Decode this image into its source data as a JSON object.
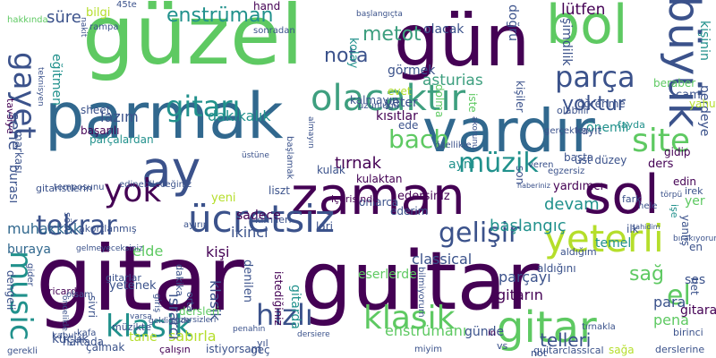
{
  "cloud": {
    "palette": {
      "purple": "#440154",
      "indigo": "#3b528b",
      "teal": "#21918c",
      "green": "#5ec962",
      "lime": "#b5de2b",
      "yellow": "#fde725"
    },
    "words": [
      {
        "text": "güzel",
        "color": "#5ec962"
      },
      {
        "text": "gün",
        "color": "#440154"
      },
      {
        "text": "bol",
        "color": "#5ec962"
      },
      {
        "text": "parmak",
        "color": "#31688e"
      },
      {
        "text": "vardır",
        "color": "#31688e"
      },
      {
        "text": "zaman",
        "color": "#440154"
      },
      {
        "text": "ay",
        "color": "#3b528b"
      },
      {
        "text": "sol",
        "color": "#440154"
      },
      {
        "text": "gitar",
        "color": "#440154"
      },
      {
        "text": "guitar",
        "color": "#440154"
      },
      {
        "text": "olacaktır",
        "color": "#3e9f7f"
      },
      {
        "text": "ücretsiz",
        "color": "#3b528b"
      },
      {
        "text": "yeterli",
        "color": "#b5de2b"
      },
      {
        "text": "klasik",
        "color": "#5ec962"
      },
      {
        "text": "gitar",
        "color": "#5ec962"
      },
      {
        "text": "büyük",
        "color": "#3b528b"
      },
      {
        "text": "gitarı",
        "color": "#21918c"
      },
      {
        "text": "parça",
        "color": "#3b528b"
      },
      {
        "text": "site",
        "color": "#5ec962"
      },
      {
        "text": "tekrar",
        "color": "#3b528b"
      },
      {
        "text": "yok",
        "color": "#440154"
      },
      {
        "text": "müzik",
        "color": "#21918c"
      },
      {
        "text": "gelişir",
        "color": "#3b528b"
      },
      {
        "text": "music",
        "color": "#21918c"
      },
      {
        "text": "klasik",
        "color": "#21918c"
      },
      {
        "text": "hızlı",
        "color": "#3b528b"
      },
      {
        "text": "gayet",
        "color": "#3b528b"
      },
      {
        "text": "bach",
        "color": "#5ec962"
      },
      {
        "text": "enstrüman",
        "color": "#21918c"
      },
      {
        "text": "metot",
        "color": "#3e9f7f"
      },
      {
        "text": "nota",
        "color": "#3b528b"
      },
      {
        "text": "yoktur",
        "color": "#3b528b"
      },
      {
        "text": "sağ",
        "color": "#5ec962"
      },
      {
        "text": "el",
        "color": "#5ec962"
      },
      {
        "text": "devam",
        "color": "#21918c"
      },
      {
        "text": "başlangıç",
        "color": "#21918c"
      },
      {
        "text": "sene",
        "color": "#3b528b"
      },
      {
        "text": "eğitmen",
        "color": "#21918c"
      },
      {
        "text": "dakikalık",
        "color": "#21918c"
      },
      {
        "text": "lazım",
        "color": "#3b528b"
      },
      {
        "text": "tırnak",
        "color": "#440154"
      },
      {
        "text": "sadece",
        "color": "#440154"
      },
      {
        "text": "ikinci",
        "color": "#3b528b"
      },
      {
        "text": "muhakkak",
        "color": "#31688e"
      },
      {
        "text": "buraya",
        "color": "#31688e"
      },
      {
        "text": "kişi",
        "color": "#440154"
      },
      {
        "text": "classical",
        "color": "#3b528b"
      },
      {
        "text": "lütfen",
        "color": "#440154"
      },
      {
        "text": "süre",
        "color": "#3b528b"
      },
      {
        "text": "bilgi",
        "color": "#b5de2b"
      },
      {
        "text": "olacak",
        "color": "#3b528b"
      },
      {
        "text": "görmek",
        "color": "#3b528b"
      },
      {
        "text": "asturias",
        "color": "#3e9f7f"
      },
      {
        "text": "kısıtlar",
        "color": "#440154"
      },
      {
        "text": "temel",
        "color": "#21918c"
      },
      {
        "text": "elde",
        "color": "#5ec962"
      },
      {
        "text": "yeni",
        "color": "#b5de2b"
      },
      {
        "text": "klasik",
        "color": "#3b528b"
      },
      {
        "text": "tane",
        "color": "#b5de2b"
      },
      {
        "text": "sabırla",
        "color": "#b5de2b"
      },
      {
        "text": "enstrümanı",
        "color": "#5ec962"
      },
      {
        "text": "günde",
        "color": "#3b528b"
      },
      {
        "text": "telleri",
        "color": "#3b528b"
      },
      {
        "text": "pena",
        "color": "#5ec962"
      },
      {
        "text": "para",
        "color": "#3b528b"
      },
      {
        "text": "gitara",
        "color": "#440154"
      },
      {
        "text": "gitarın",
        "color": "#440154"
      },
      {
        "text": "parçayı",
        "color": "#3b528b"
      },
      {
        "text": "ısrarcı",
        "color": "#3b528b"
      },
      {
        "text": "gitarda",
        "color": "#21918c"
      },
      {
        "text": "eserlerde",
        "color": "#5ec962"
      },
      {
        "text": "önemli",
        "color": "#21918c"
      },
      {
        "text": "yardımcı",
        "color": "#440154"
      },
      {
        "text": "ayni",
        "color": "#21918c"
      },
      {
        "text": "edersiniz",
        "color": "#440154"
      },
      {
        "text": "ses",
        "color": "#3b528b"
      },
      {
        "text": "kişinin",
        "color": "#21918c"
      },
      {
        "text": "şimdilik",
        "color": "#3b528b"
      },
      {
        "text": "perdeye",
        "color": "#3b528b"
      },
      {
        "text": "burası",
        "color": "#3b528b"
      },
      {
        "text": "küçük",
        "color": "#3b528b"
      },
      {
        "text": "yeter",
        "color": "#3b528b"
      },
      {
        "text": "evet",
        "color": "#b5de2b"
      },
      {
        "text": "kolay",
        "color": "#21918c"
      },
      {
        "text": "yer",
        "color": "#5ec962"
      },
      {
        "text": "sheet",
        "color": "#3b528b"
      },
      {
        "text": "liszt",
        "color": "#3b528b"
      },
      {
        "text": "tavsiye",
        "color": "#440154"
      },
      {
        "text": "parçalardan",
        "color": "#21918c"
      },
      {
        "text": "başarılı",
        "color": "#440154"
      },
      {
        "text": "denilen",
        "color": "#3b528b"
      },
      {
        "text": "istiyorsam",
        "color": "#3b528b"
      },
      {
        "text": "dersleri",
        "color": "#5ec962"
      },
      {
        "text": "dakika",
        "color": "#3b528b"
      },
      {
        "text": "istediğiniz",
        "color": "#440154"
      },
      {
        "text": "kulak",
        "color": "#3b528b"
      },
      {
        "text": "başta",
        "color": "#3b528b"
      },
      {
        "text": "ders",
        "color": "#440154"
      },
      {
        "text": "cam",
        "color": "#3b528b"
      },
      {
        "text": "yahut",
        "color": "#b5de2b"
      },
      {
        "text": "gidip",
        "color": "#440154"
      },
      {
        "text": "kayıt",
        "color": "#3b528b"
      },
      {
        "text": "olabilir",
        "color": "#3b528b"
      },
      {
        "text": "beraber",
        "color": "#5ec962"
      },
      {
        "text": "öğrenme",
        "color": "#3b528b"
      },
      {
        "text": "fayda",
        "color": "#21918c"
      },
      {
        "text": "edin",
        "color": "#440154"
      },
      {
        "text": "fark",
        "color": "#3b528b"
      },
      {
        "text": "irek",
        "color": "#3b528b"
      },
      {
        "text": "üst düzey",
        "color": "#3b528b"
      },
      {
        "text": "ayırıp",
        "color": "#3b528b"
      },
      {
        "text": "sözü",
        "color": "#3b528b"
      },
      {
        "text": "temposunu",
        "color": "#3b528b"
      },
      {
        "text": "markası",
        "color": "#3b528b"
      },
      {
        "text": "hakkında",
        "color": "#5ec962"
      },
      {
        "text": "45te",
        "color": "#3b528b"
      },
      {
        "text": "hand",
        "color": "#440154"
      },
      {
        "text": "rampa",
        "color": "#3b528b"
      },
      {
        "text": "kalmayın",
        "color": "#3b528b"
      },
      {
        "text": "uzunluğu",
        "color": "#3b528b"
      },
      {
        "text": "sonradan",
        "color": "#3b528b"
      },
      {
        "text": "iste",
        "color": "#5ec962"
      },
      {
        "text": "doğru",
        "color": "#3b528b"
      },
      {
        "text": "başlangıçta",
        "color": "#3b528b"
      },
      {
        "text": "dolma",
        "color": "#5ec962"
      },
      {
        "text": "özellikle",
        "color": "#3b528b"
      },
      {
        "text": "ede",
        "color": "#3b528b"
      },
      {
        "text": "kişiler",
        "color": "#3b528b"
      },
      {
        "text": "ederim",
        "color": "#3b528b"
      },
      {
        "text": "onlarca",
        "color": "#3b528b"
      },
      {
        "text": "kulaktan",
        "color": "#440154"
      },
      {
        "text": "içerisinde",
        "color": "#440154"
      },
      {
        "text": "lari",
        "color": "#3b528b"
      },
      {
        "text": "kabul",
        "color": "#3b528b"
      },
      {
        "text": "haftada",
        "color": "#3b528b"
      },
      {
        "text": "çalışın",
        "color": "#440154"
      },
      {
        "text": "geç",
        "color": "#3b528b"
      },
      {
        "text": "yıl",
        "color": "#3b528b"
      },
      {
        "text": "in",
        "color": "#440154"
      },
      {
        "text": "vs",
        "color": "#3b528b"
      },
      {
        "text": "not",
        "color": "#3b528b"
      },
      {
        "text": "sağa",
        "color": "#b5de2b"
      },
      {
        "text": "derslerine",
        "color": "#3b528b"
      },
      {
        "text": "tırnakla",
        "color": "#3b528b"
      },
      {
        "text": "guitarclassical",
        "color": "#3b528b"
      },
      {
        "text": "kafa",
        "color": "#3b528b"
      },
      {
        "text": "çalmak",
        "color": "#3b528b"
      },
      {
        "text": "gerekli",
        "color": "#3b528b"
      },
      {
        "text": "birinci",
        "color": "#3b528b"
      },
      {
        "text": "ricardo",
        "color": "#440154"
      },
      {
        "text": "olsam",
        "color": "#3b528b"
      },
      {
        "text": "gider",
        "color": "#3b528b"
      },
      {
        "text": "dengeli",
        "color": "#3b528b"
      },
      {
        "text": "ilk",
        "color": "#3b528b"
      },
      {
        "text": "en",
        "color": "#3b528b"
      },
      {
        "text": "net",
        "color": "#3b528b"
      },
      {
        "text": "orta",
        "color": "#3b528b"
      },
      {
        "text": "giriş",
        "color": "#3b528b"
      },
      {
        "text": "öncelikle",
        "color": "#3b528b"
      },
      {
        "text": "müzikte",
        "color": "#3b528b"
      },
      {
        "text": "yetenek",
        "color": "#3b528b"
      },
      {
        "text": "sivri",
        "color": "#3b528b"
      },
      {
        "text": "varsa",
        "color": "#3b528b"
      },
      {
        "text": "egzersiz",
        "color": "#3b528b"
      },
      {
        "text": "son",
        "color": "#3b528b"
      },
      {
        "text": "veren",
        "color": "#3b528b"
      },
      {
        "text": "hele",
        "color": "#3b528b"
      },
      {
        "text": "kimileri",
        "color": "#3b528b"
      },
      {
        "text": "gitaristlerin",
        "color": "#3b528b"
      },
      {
        "text": "akortlanmış",
        "color": "#3b528b"
      },
      {
        "text": "edinebileceğiniz",
        "color": "#3b528b"
      },
      {
        "text": "gitarlar",
        "color": "#3b528b"
      },
      {
        "text": "gelmeyeceksiniz",
        "color": "#3b528b"
      },
      {
        "text": "bırakıyorum",
        "color": "#3b528b"
      },
      {
        "text": "işe",
        "color": "#21918c"
      },
      {
        "text": "yanlış",
        "color": "#3b528b"
      },
      {
        "text": "gerçekten",
        "color": "#3b528b"
      },
      {
        "text": "şahidim",
        "color": "#3b528b"
      },
      {
        "text": "törpü",
        "color": "#3b528b"
      },
      {
        "text": "haberiniz",
        "color": "#3b528b"
      },
      {
        "text": "aldığım",
        "color": "#3b528b"
      },
      {
        "text": "aldığını",
        "color": "#3b528b"
      },
      {
        "text": "miyim",
        "color": "#3b528b"
      },
      {
        "text": "penahin",
        "color": "#3b528b"
      },
      {
        "text": "egzersizleri",
        "color": "#3b528b"
      },
      {
        "text": "geldiğinde",
        "color": "#3b528b"
      },
      {
        "text": "üstüne",
        "color": "#3b528b"
      },
      {
        "text": "dersiere",
        "color": "#3b528b"
      },
      {
        "text": "almayın",
        "color": "#3b528b"
      },
      {
        "text": "akorunu",
        "color": "#3b528b"
      },
      {
        "text": "başlamak",
        "color": "#3b528b"
      },
      {
        "text": "bilmiyorum",
        "color": "#3b528b"
      },
      {
        "text": "teknisyen",
        "color": "#3b528b"
      },
      {
        "text": "nakit",
        "color": "#3b528b"
      }
    ]
  }
}
